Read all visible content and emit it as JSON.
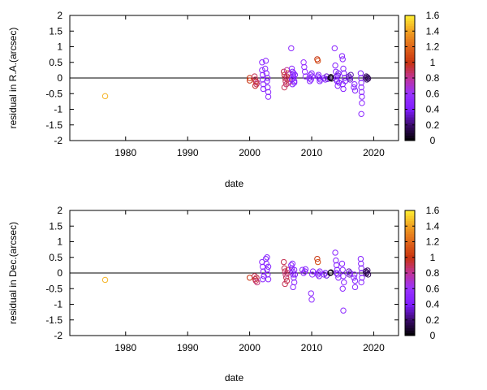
{
  "chart_data": [
    {
      "type": "scatter",
      "xlabel": "date",
      "ylabel": "residual in R.A.(arcsec)",
      "xlim": [
        1971,
        2024
      ],
      "ylim": [
        -2,
        2
      ],
      "x_ticks": [
        1980,
        1990,
        2000,
        2010,
        2020
      ],
      "y_ticks": [
        -2,
        -1.5,
        -1,
        -0.5,
        0,
        0.5,
        1,
        1.5,
        2
      ],
      "y_tick_labels": [
        "-2",
        "-1.5",
        "-1",
        "-0.5",
        "0",
        "0.5",
        "1",
        "1.5",
        "2"
      ],
      "x_tick_labels": [
        "1980",
        "1990",
        "2000",
        "2010",
        "2020"
      ],
      "zero_line": true,
      "grid": false,
      "colorbar": {
        "range": [
          0,
          1.6
        ],
        "ticks": [
          "0",
          "0.2",
          "0.4",
          "0.6",
          "0.8",
          "1",
          "1.2",
          "1.4",
          "1.6"
        ],
        "palette": [
          "#000000",
          "#3a0a6a",
          "#7f1cff",
          "#9933ff",
          "#c03399",
          "#c8330f",
          "#e0661a",
          "#f0a020",
          "#ffee33"
        ]
      },
      "points": [
        {
          "x": 1976.7,
          "y": -0.58,
          "c": 1.45
        },
        {
          "x": 2000.0,
          "y": 0.0,
          "c": 1.0
        },
        {
          "x": 2000.0,
          "y": -0.08,
          "c": 1.0
        },
        {
          "x": 2000.8,
          "y": 0.05,
          "c": 0.9
        },
        {
          "x": 2000.9,
          "y": -0.05,
          "c": 0.9
        },
        {
          "x": 2001.0,
          "y": -0.12,
          "c": 0.95
        },
        {
          "x": 2001.1,
          "y": -0.2,
          "c": 0.9
        },
        {
          "x": 2001.2,
          "y": -0.15,
          "c": 0.85
        },
        {
          "x": 2000.9,
          "y": -0.25,
          "c": 0.95
        },
        {
          "x": 2002.0,
          "y": 0.5,
          "c": 0.5
        },
        {
          "x": 2002.0,
          "y": 0.25,
          "c": 0.5
        },
        {
          "x": 2002.1,
          "y": 0.1,
          "c": 0.45
        },
        {
          "x": 2002.1,
          "y": -0.05,
          "c": 0.45
        },
        {
          "x": 2002.2,
          "y": -0.2,
          "c": 0.5
        },
        {
          "x": 2002.2,
          "y": -0.35,
          "c": 0.45
        },
        {
          "x": 2002.5,
          "y": 0.3,
          "c": 0.5
        },
        {
          "x": 2002.6,
          "y": 0.55,
          "c": 0.5
        },
        {
          "x": 2002.7,
          "y": 0.15,
          "c": 0.45
        },
        {
          "x": 2002.8,
          "y": -0.1,
          "c": 0.45
        },
        {
          "x": 2002.9,
          "y": -0.3,
          "c": 0.45
        },
        {
          "x": 2003.0,
          "y": -0.45,
          "c": 0.5
        },
        {
          "x": 2003.0,
          "y": -0.6,
          "c": 0.5
        },
        {
          "x": 2002.9,
          "y": 0.0,
          "c": 0.5
        },
        {
          "x": 2005.5,
          "y": 0.2,
          "c": 0.9
        },
        {
          "x": 2005.6,
          "y": 0.1,
          "c": 0.95
        },
        {
          "x": 2005.7,
          "y": 0.0,
          "c": 0.9
        },
        {
          "x": 2005.8,
          "y": -0.1,
          "c": 0.9
        },
        {
          "x": 2005.9,
          "y": -0.2,
          "c": 0.85
        },
        {
          "x": 2005.6,
          "y": -0.3,
          "c": 0.9
        },
        {
          "x": 2006.0,
          "y": 0.05,
          "c": 0.85
        },
        {
          "x": 2006.1,
          "y": -0.05,
          "c": 0.9
        },
        {
          "x": 2006.2,
          "y": 0.15,
          "c": 0.95
        },
        {
          "x": 2006.3,
          "y": -0.15,
          "c": 0.9
        },
        {
          "x": 2006.0,
          "y": 0.25,
          "c": 0.8
        },
        {
          "x": 2006.7,
          "y": 0.95,
          "c": 0.5
        },
        {
          "x": 2006.8,
          "y": 0.3,
          "c": 0.5
        },
        {
          "x": 2006.9,
          "y": 0.2,
          "c": 0.45
        },
        {
          "x": 2007.0,
          "y": 0.1,
          "c": 0.45
        },
        {
          "x": 2007.1,
          "y": 0.0,
          "c": 0.45
        },
        {
          "x": 2007.2,
          "y": -0.1,
          "c": 0.5
        },
        {
          "x": 2006.8,
          "y": -0.05,
          "c": 0.45
        },
        {
          "x": 2006.9,
          "y": -0.2,
          "c": 0.45
        },
        {
          "x": 2007.0,
          "y": 0.05,
          "c": 0.45
        },
        {
          "x": 2007.1,
          "y": 0.15,
          "c": 0.5
        },
        {
          "x": 2007.2,
          "y": -0.15,
          "c": 0.45
        },
        {
          "x": 2007.3,
          "y": 0.1,
          "c": 0.45
        },
        {
          "x": 2008.7,
          "y": 0.5,
          "c": 0.6
        },
        {
          "x": 2008.8,
          "y": 0.35,
          "c": 0.55
        },
        {
          "x": 2008.9,
          "y": 0.2,
          "c": 0.55
        },
        {
          "x": 2009.0,
          "y": 0.05,
          "c": 0.5
        },
        {
          "x": 2009.6,
          "y": 0.0,
          "c": 0.45
        },
        {
          "x": 2009.7,
          "y": -0.1,
          "c": 0.45
        },
        {
          "x": 2009.8,
          "y": 0.1,
          "c": 0.5
        },
        {
          "x": 2009.9,
          "y": -0.05,
          "c": 0.45
        },
        {
          "x": 2010.0,
          "y": 0.15,
          "c": 0.45
        },
        {
          "x": 2010.1,
          "y": 0.05,
          "c": 0.5
        },
        {
          "x": 2010.9,
          "y": 0.6,
          "c": 1.0
        },
        {
          "x": 2011.0,
          "y": 0.55,
          "c": 1.1
        },
        {
          "x": 2011.1,
          "y": 0.1,
          "c": 0.45
        },
        {
          "x": 2011.2,
          "y": 0.0,
          "c": 0.45
        },
        {
          "x": 2011.3,
          "y": -0.1,
          "c": 0.45
        },
        {
          "x": 2011.0,
          "y": 0.05,
          "c": 0.45
        },
        {
          "x": 2011.4,
          "y": -0.05,
          "c": 0.45
        },
        {
          "x": 2012.0,
          "y": 0.0,
          "c": 0.4
        },
        {
          "x": 2012.2,
          "y": -0.05,
          "c": 0.4
        },
        {
          "x": 2012.4,
          "y": 0.05,
          "c": 0.35
        },
        {
          "x": 2012.6,
          "y": -0.03,
          "c": 0.35
        },
        {
          "x": 2013.0,
          "y": 0.0,
          "c": 0.05
        },
        {
          "x": 2013.1,
          "y": 0.03,
          "c": 0.05
        },
        {
          "x": 2013.2,
          "y": -0.02,
          "c": 0.05
        },
        {
          "x": 2013.7,
          "y": 0.95,
          "c": 0.5
        },
        {
          "x": 2013.8,
          "y": 0.4,
          "c": 0.45
        },
        {
          "x": 2013.9,
          "y": 0.2,
          "c": 0.45
        },
        {
          "x": 2014.0,
          "y": 0.05,
          "c": 0.4
        },
        {
          "x": 2014.1,
          "y": -0.1,
          "c": 0.4
        },
        {
          "x": 2014.2,
          "y": -0.25,
          "c": 0.45
        },
        {
          "x": 2014.3,
          "y": 0.15,
          "c": 0.4
        },
        {
          "x": 2014.0,
          "y": -0.05,
          "c": 0.45
        },
        {
          "x": 2014.2,
          "y": 0.08,
          "c": 0.35
        },
        {
          "x": 2014.4,
          "y": -0.15,
          "c": 0.4
        },
        {
          "x": 2014.9,
          "y": 0.7,
          "c": 0.45
        },
        {
          "x": 2015.0,
          "y": 0.6,
          "c": 0.5
        },
        {
          "x": 2015.1,
          "y": 0.3,
          "c": 0.45
        },
        {
          "x": 2015.2,
          "y": 0.15,
          "c": 0.45
        },
        {
          "x": 2015.3,
          "y": 0.0,
          "c": 0.4
        },
        {
          "x": 2015.0,
          "y": -0.2,
          "c": 0.45
        },
        {
          "x": 2015.1,
          "y": -0.35,
          "c": 0.45
        },
        {
          "x": 2015.4,
          "y": -0.1,
          "c": 0.4
        },
        {
          "x": 2016.0,
          "y": 0.05,
          "c": 0.3
        },
        {
          "x": 2016.1,
          "y": 0.0,
          "c": 0.3
        },
        {
          "x": 2016.2,
          "y": -0.05,
          "c": 0.35
        },
        {
          "x": 2016.3,
          "y": 0.1,
          "c": 0.3
        },
        {
          "x": 2016.8,
          "y": -0.3,
          "c": 0.45
        },
        {
          "x": 2016.9,
          "y": -0.2,
          "c": 0.45
        },
        {
          "x": 2017.0,
          "y": -0.4,
          "c": 0.45
        },
        {
          "x": 2017.9,
          "y": 0.15,
          "c": 0.45
        },
        {
          "x": 2017.95,
          "y": 0.0,
          "c": 0.45
        },
        {
          "x": 2018.0,
          "y": -0.15,
          "c": 0.45
        },
        {
          "x": 2018.0,
          "y": -0.3,
          "c": 0.45
        },
        {
          "x": 2018.05,
          "y": -0.45,
          "c": 0.5
        },
        {
          "x": 2018.1,
          "y": -0.6,
          "c": 0.45
        },
        {
          "x": 2018.1,
          "y": -0.8,
          "c": 0.5
        },
        {
          "x": 2018.0,
          "y": -1.15,
          "c": 0.5
        },
        {
          "x": 2018.7,
          "y": 0.0,
          "c": 0.25
        },
        {
          "x": 2018.8,
          "y": 0.05,
          "c": 0.2
        },
        {
          "x": 2018.9,
          "y": -0.05,
          "c": 0.2
        },
        {
          "x": 2019.0,
          "y": 0.02,
          "c": 0.15
        },
        {
          "x": 2019.1,
          "y": -0.02,
          "c": 0.15
        }
      ]
    },
    {
      "type": "scatter",
      "xlabel": "date",
      "ylabel": "residual in Dec.(arcsec)",
      "xlim": [
        1971,
        2024
      ],
      "ylim": [
        -2,
        2
      ],
      "x_ticks": [
        1980,
        1990,
        2000,
        2010,
        2020
      ],
      "y_ticks": [
        -2,
        -1.5,
        -1,
        -0.5,
        0,
        0.5,
        1,
        1.5,
        2
      ],
      "y_tick_labels": [
        "-2",
        "-1.5",
        "-1",
        "-0.5",
        "0",
        "0.5",
        "1",
        "1.5",
        "2"
      ],
      "x_tick_labels": [
        "1980",
        "1990",
        "2000",
        "2010",
        "2020"
      ],
      "zero_line": true,
      "grid": false,
      "colorbar": {
        "range": [
          0,
          1.6
        ],
        "ticks": [
          "0",
          "0.2",
          "0.4",
          "0.6",
          "0.8",
          "1",
          "1.2",
          "1.4",
          "1.6"
        ],
        "palette": [
          "#000000",
          "#3a0a6a",
          "#7f1cff",
          "#9933ff",
          "#c03399",
          "#c8330f",
          "#e0661a",
          "#f0a020",
          "#ffee33"
        ]
      },
      "points": [
        {
          "x": 1976.7,
          "y": -0.22,
          "c": 1.45
        },
        {
          "x": 2000.0,
          "y": -0.15,
          "c": 1.0
        },
        {
          "x": 2000.8,
          "y": -0.1,
          "c": 0.9
        },
        {
          "x": 2000.9,
          "y": -0.2,
          "c": 0.95
        },
        {
          "x": 2001.0,
          "y": -0.25,
          "c": 0.9
        },
        {
          "x": 2001.1,
          "y": -0.15,
          "c": 0.9
        },
        {
          "x": 2001.2,
          "y": -0.3,
          "c": 0.85
        },
        {
          "x": 2002.0,
          "y": 0.35,
          "c": 0.5
        },
        {
          "x": 2002.1,
          "y": 0.2,
          "c": 0.5
        },
        {
          "x": 2002.2,
          "y": 0.05,
          "c": 0.45
        },
        {
          "x": 2002.3,
          "y": -0.1,
          "c": 0.45
        },
        {
          "x": 2002.1,
          "y": -0.2,
          "c": 0.5
        },
        {
          "x": 2002.6,
          "y": 0.45,
          "c": 0.5
        },
        {
          "x": 2002.7,
          "y": 0.3,
          "c": 0.45
        },
        {
          "x": 2002.8,
          "y": 0.1,
          "c": 0.45
        },
        {
          "x": 2002.9,
          "y": -0.05,
          "c": 0.45
        },
        {
          "x": 2003.0,
          "y": -0.2,
          "c": 0.5
        },
        {
          "x": 2002.8,
          "y": 0.5,
          "c": 0.45
        },
        {
          "x": 2003.0,
          "y": 0.2,
          "c": 0.45
        },
        {
          "x": 2005.5,
          "y": 0.35,
          "c": 0.9
        },
        {
          "x": 2005.6,
          "y": 0.15,
          "c": 0.9
        },
        {
          "x": 2005.7,
          "y": 0.05,
          "c": 0.9
        },
        {
          "x": 2005.8,
          "y": -0.05,
          "c": 0.85
        },
        {
          "x": 2005.9,
          "y": -0.15,
          "c": 0.9
        },
        {
          "x": 2006.0,
          "y": -0.25,
          "c": 0.9
        },
        {
          "x": 2006.1,
          "y": 0.0,
          "c": 0.85
        },
        {
          "x": 2006.2,
          "y": 0.1,
          "c": 0.9
        },
        {
          "x": 2005.7,
          "y": -0.35,
          "c": 0.9
        },
        {
          "x": 2006.7,
          "y": 0.25,
          "c": 0.5
        },
        {
          "x": 2006.8,
          "y": 0.15,
          "c": 0.45
        },
        {
          "x": 2006.9,
          "y": 0.05,
          "c": 0.45
        },
        {
          "x": 2007.0,
          "y": -0.05,
          "c": 0.45
        },
        {
          "x": 2007.1,
          "y": -0.15,
          "c": 0.45
        },
        {
          "x": 2007.2,
          "y": -0.3,
          "c": 0.5
        },
        {
          "x": 2007.0,
          "y": -0.45,
          "c": 0.5
        },
        {
          "x": 2006.9,
          "y": 0.3,
          "c": 0.45
        },
        {
          "x": 2007.2,
          "y": 0.1,
          "c": 0.45
        },
        {
          "x": 2007.3,
          "y": -0.05,
          "c": 0.45
        },
        {
          "x": 2008.5,
          "y": 0.1,
          "c": 0.5
        },
        {
          "x": 2008.7,
          "y": 0.0,
          "c": 0.5
        },
        {
          "x": 2008.9,
          "y": 0.05,
          "c": 0.45
        },
        {
          "x": 2009.0,
          "y": 0.12,
          "c": 0.45
        },
        {
          "x": 2009.9,
          "y": -0.65,
          "c": 0.5
        },
        {
          "x": 2010.0,
          "y": -0.85,
          "c": 0.5
        },
        {
          "x": 2010.1,
          "y": -0.05,
          "c": 0.45
        },
        {
          "x": 2010.2,
          "y": 0.05,
          "c": 0.45
        },
        {
          "x": 2010.9,
          "y": 0.45,
          "c": 1.0
        },
        {
          "x": 2011.0,
          "y": 0.35,
          "c": 1.1
        },
        {
          "x": 2011.1,
          "y": 0.0,
          "c": 0.45
        },
        {
          "x": 2011.2,
          "y": -0.1,
          "c": 0.45
        },
        {
          "x": 2011.3,
          "y": 0.05,
          "c": 0.45
        },
        {
          "x": 2011.0,
          "y": -0.05,
          "c": 0.45
        },
        {
          "x": 2012.0,
          "y": -0.05,
          "c": 0.4
        },
        {
          "x": 2012.2,
          "y": 0.0,
          "c": 0.4
        },
        {
          "x": 2012.4,
          "y": -0.08,
          "c": 0.35
        },
        {
          "x": 2013.0,
          "y": 0.0,
          "c": 0.05
        },
        {
          "x": 2013.1,
          "y": 0.02,
          "c": 0.05
        },
        {
          "x": 2013.8,
          "y": 0.65,
          "c": 0.5
        },
        {
          "x": 2013.9,
          "y": 0.4,
          "c": 0.45
        },
        {
          "x": 2014.0,
          "y": 0.25,
          "c": 0.45
        },
        {
          "x": 2014.1,
          "y": 0.1,
          "c": 0.4
        },
        {
          "x": 2014.2,
          "y": -0.05,
          "c": 0.4
        },
        {
          "x": 2014.3,
          "y": -0.15,
          "c": 0.45
        },
        {
          "x": 2014.0,
          "y": 0.0,
          "c": 0.4
        },
        {
          "x": 2014.9,
          "y": 0.3,
          "c": 0.45
        },
        {
          "x": 2015.0,
          "y": 0.1,
          "c": 0.45
        },
        {
          "x": 2015.1,
          "y": -0.1,
          "c": 0.45
        },
        {
          "x": 2015.0,
          "y": -0.5,
          "c": 0.5
        },
        {
          "x": 2015.1,
          "y": -1.2,
          "c": 0.5
        },
        {
          "x": 2015.2,
          "y": -0.3,
          "c": 0.45
        },
        {
          "x": 2016.0,
          "y": 0.05,
          "c": 0.3
        },
        {
          "x": 2016.1,
          "y": -0.05,
          "c": 0.3
        },
        {
          "x": 2016.2,
          "y": 0.0,
          "c": 0.35
        },
        {
          "x": 2016.8,
          "y": -0.15,
          "c": 0.45
        },
        {
          "x": 2016.9,
          "y": -0.05,
          "c": 0.45
        },
        {
          "x": 2017.0,
          "y": -0.25,
          "c": 0.45
        },
        {
          "x": 2017.0,
          "y": -0.45,
          "c": 0.5
        },
        {
          "x": 2017.9,
          "y": 0.45,
          "c": 0.45
        },
        {
          "x": 2017.95,
          "y": 0.3,
          "c": 0.45
        },
        {
          "x": 2018.0,
          "y": 0.15,
          "c": 0.45
        },
        {
          "x": 2018.05,
          "y": 0.0,
          "c": 0.45
        },
        {
          "x": 2018.1,
          "y": -0.15,
          "c": 0.45
        },
        {
          "x": 2018.0,
          "y": -0.3,
          "c": 0.45
        },
        {
          "x": 2018.7,
          "y": 0.05,
          "c": 0.2
        },
        {
          "x": 2018.8,
          "y": -0.02,
          "c": 0.2
        },
        {
          "x": 2018.9,
          "y": 0.02,
          "c": 0.15
        },
        {
          "x": 2019.0,
          "y": 0.08,
          "c": 0.2
        },
        {
          "x": 2019.1,
          "y": -0.05,
          "c": 0.15
        }
      ]
    }
  ]
}
